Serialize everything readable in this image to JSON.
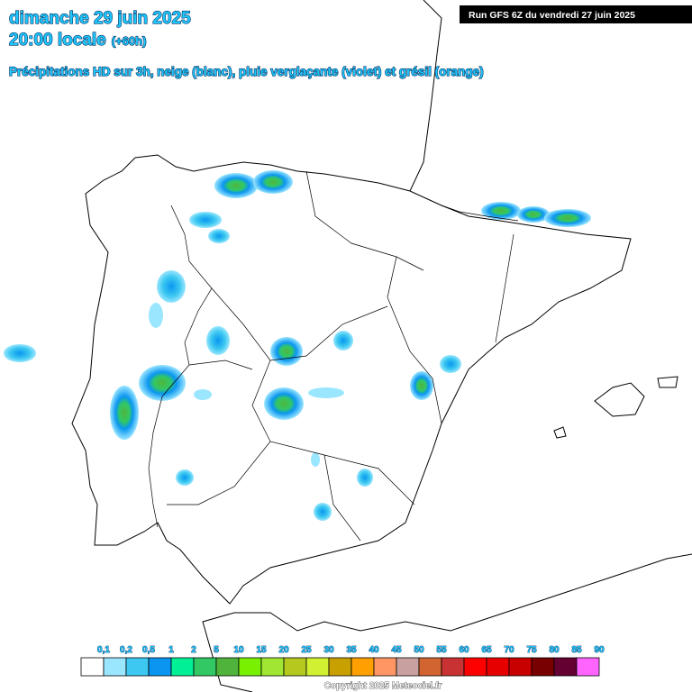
{
  "header": {
    "date": "dimanche 29 juin 2025",
    "time": "20:00 locale",
    "offset": "(+60h)",
    "subtitle": "Précipitations HD sur 3h, neige (blanc), pluie verglaçante (violet) et grésil (orange)",
    "run": "Run GFS 6Z du vendredi 27 juin 2025"
  },
  "legend": {
    "labels": [
      "0,1",
      "0,2",
      "0,5",
      "1",
      "2",
      "5",
      "10",
      "15",
      "20",
      "25",
      "30",
      "35",
      "40",
      "45",
      "50",
      "55",
      "60",
      "65",
      "70",
      "75",
      "80",
      "85",
      "90"
    ],
    "colors": [
      "#ffffff",
      "#9be6ff",
      "#3cc8f0",
      "#0a96f0",
      "#00f096",
      "#32c864",
      "#50b43c",
      "#78f000",
      "#a0e632",
      "#b4c81e",
      "#d2f032",
      "#c8a000",
      "#ffa000",
      "#ff9664",
      "#c8a0a0",
      "#d26432",
      "#c83232",
      "#ff0000",
      "#e60000",
      "#c80000",
      "#780000",
      "#640032",
      "#ff64ff"
    ]
  },
  "copyright": "Copyright 2025 Meteociel.fr"
}
